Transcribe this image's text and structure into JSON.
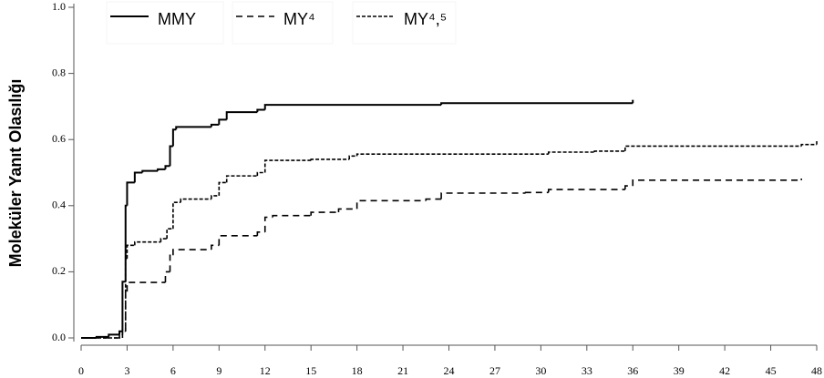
{
  "chart_data": {
    "type": "line",
    "step": true,
    "y_label": "Moleküler Yanıt Olasılığı",
    "xlim": [
      0,
      48
    ],
    "xticks": [
      0,
      3,
      6,
      9,
      12,
      15,
      18,
      21,
      24,
      27,
      30,
      33,
      36,
      39,
      42,
      45,
      48
    ],
    "ylim": [
      0,
      1
    ],
    "yticks": [
      {
        "value": 0,
        "label": "0.0"
      },
      0.2,
      0.4,
      0.6,
      0.8,
      {
        "value": 1,
        "label": "1.0"
      }
    ],
    "grid": false,
    "legend": "top",
    "series": [
      {
        "name": "MMY",
        "color": "#000000",
        "line_style": "solid",
        "x": [
          0,
          1,
          1.8,
          2.5,
          2.7,
          2.9,
          3.0,
          3.5,
          4,
          5,
          5.5,
          5.8,
          6,
          6.2,
          8.5,
          9,
          9.5,
          11.5,
          12,
          23.5,
          36
        ],
        "values": [
          0,
          0.003,
          0.01,
          0.02,
          0.17,
          0.4,
          0.47,
          0.5,
          0.505,
          0.51,
          0.52,
          0.58,
          0.63,
          0.638,
          0.645,
          0.66,
          0.683,
          0.69,
          0.705,
          0.71,
          0.72
        ]
      },
      {
        "name": "MY⁴",
        "color": "#000000",
        "line_style": "long-dash",
        "x": [
          0,
          2.7,
          2.9,
          3.0,
          5.5,
          5.8,
          6,
          8.5,
          9,
          11.5,
          12,
          12.5,
          15,
          16.8,
          18,
          22.5,
          23.5,
          29,
          30.5,
          35.5,
          36,
          47
        ],
        "values": [
          0,
          0.02,
          0.14,
          0.168,
          0.2,
          0.25,
          0.267,
          0.28,
          0.309,
          0.32,
          0.365,
          0.37,
          0.38,
          0.39,
          0.415,
          0.42,
          0.438,
          0.44,
          0.449,
          0.46,
          0.477,
          0.482
        ]
      },
      {
        "name": "MY⁴,⁵",
        "color": "#000000",
        "line_style": "short-dash",
        "x": [
          0,
          2.5,
          2.7,
          2.9,
          3.0,
          3.5,
          5.2,
          5.6,
          6,
          6.5,
          8.5,
          9,
          9.5,
          11.5,
          12,
          15,
          17.5,
          18,
          30.5,
          33.5,
          35.5,
          47,
          48
        ],
        "values": [
          0,
          0.01,
          0.02,
          0.24,
          0.28,
          0.29,
          0.3,
          0.33,
          0.41,
          0.42,
          0.43,
          0.47,
          0.49,
          0.5,
          0.537,
          0.54,
          0.55,
          0.556,
          0.562,
          0.565,
          0.58,
          0.585,
          0.595
        ]
      }
    ]
  }
}
